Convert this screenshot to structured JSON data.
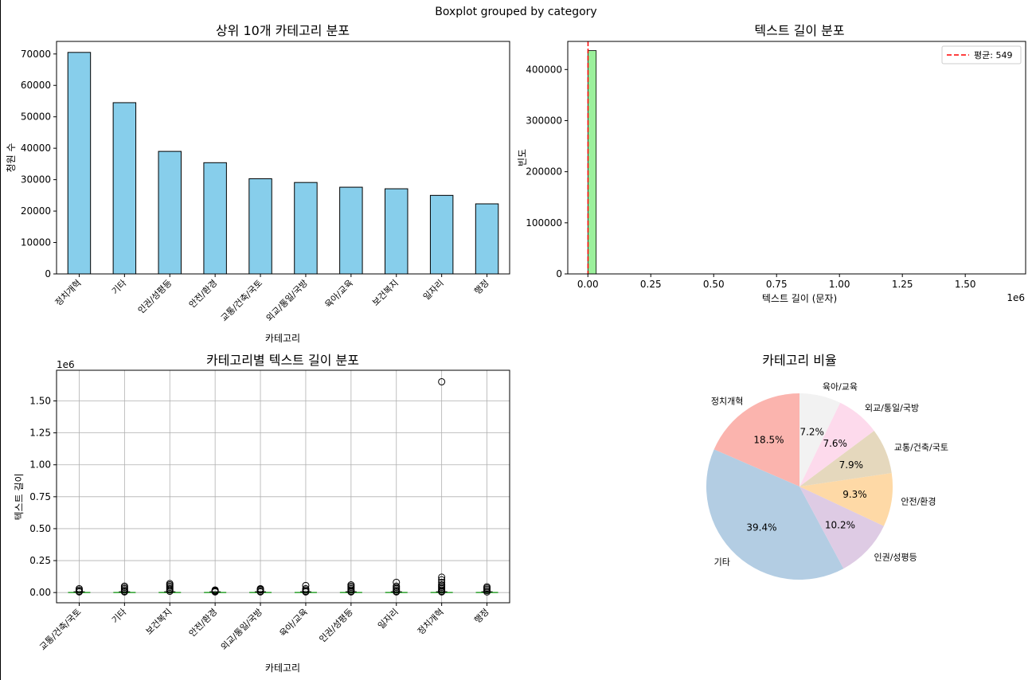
{
  "suptitle": "Boxplot grouped by category",
  "chart_data": [
    {
      "type": "bar",
      "title": "상위 10개 카테고리 분포",
      "xlabel": "카테고리",
      "ylabel": "청원 수",
      "categories": [
        "정치개혁",
        "기타",
        "인권/성평등",
        "안전/환경",
        "교통/건축/국토",
        "외교/통일/국방",
        "육아/교육",
        "보건복지",
        "일자리",
        "행정"
      ],
      "values": [
        70500,
        54500,
        39000,
        35400,
        30300,
        29100,
        27600,
        27100,
        25000,
        22300
      ],
      "ylim": [
        0,
        74000
      ],
      "yticks": [
        "0",
        "10000",
        "20000",
        "30000",
        "40000",
        "50000",
        "60000",
        "70000"
      ],
      "bar_color": "#87ceeb",
      "edge_color": "#000000"
    },
    {
      "type": "bar",
      "subtype": "histogram",
      "title": "텍스트 길이 분포",
      "xlabel": "텍스트 길이 (문자)",
      "ylabel": "빈도",
      "x_multiplier": "1e6",
      "xlim": [
        -0.08,
        1.74
      ],
      "ylim": [
        0,
        455000
      ],
      "xticks": [
        "0.00",
        "0.25",
        "0.50",
        "0.75",
        "1.00",
        "1.25",
        "1.50"
      ],
      "yticks": [
        "0",
        "100000",
        "200000",
        "300000",
        "400000"
      ],
      "bins": [
        {
          "x0": 0.0,
          "x1": 0.033,
          "count": 437000
        }
      ],
      "mean_line": {
        "value": 549,
        "label": "평균: 549",
        "color": "#ff0000"
      },
      "bar_color": "#90ee90",
      "legend_position": "top-right"
    },
    {
      "type": "scatter",
      "subtype": "boxplot",
      "title": "카테고리별 텍스트 길이 분포",
      "xlabel": "카테고리",
      "ylabel": "텍스트 길이",
      "y_multiplier": "1e6",
      "categories": [
        "교통/건축/국토",
        "기타",
        "보건복지",
        "안전/환경",
        "외교/통일/국방",
        "육아/교육",
        "인권/성평등",
        "일자리",
        "정치개혁",
        "행정"
      ],
      "ylim": [
        -0.08,
        1.74
      ],
      "yticks": [
        "0.00",
        "0.25",
        "0.50",
        "0.75",
        "1.00",
        "1.25",
        "1.50"
      ],
      "grid": true,
      "outliers": [
        [
          0.03,
          0.02,
          0.01,
          0.005
        ],
        [
          0.05,
          0.04,
          0.03,
          0.02,
          0.01,
          0.005
        ],
        [
          0.07,
          0.06,
          0.05,
          0.04,
          0.03,
          0.02,
          0.01
        ],
        [
          0.02,
          0.015,
          0.01,
          0.005
        ],
        [
          0.03,
          0.025,
          0.02,
          0.01,
          0.005
        ],
        [
          0.055,
          0.03,
          0.02,
          0.01,
          0.005
        ],
        [
          0.06,
          0.05,
          0.04,
          0.03,
          0.02,
          0.01,
          0.005
        ],
        [
          0.08,
          0.05,
          0.04,
          0.03,
          0.02,
          0.01,
          0.005
        ],
        [
          1.65,
          0.12,
          0.1,
          0.08,
          0.06,
          0.05,
          0.04,
          0.03,
          0.02,
          0.01,
          0.005
        ],
        [
          0.045,
          0.035,
          0.025,
          0.015,
          0.005
        ]
      ],
      "median_color": "#2ca02c"
    },
    {
      "type": "pie",
      "title": "카테고리 비율",
      "start_angle": 90,
      "labels": [
        "정치개혁",
        "기타",
        "인권/성평등",
        "안전/환경",
        "교통/건축/국토",
        "외교/통일/국방",
        "육아/교육"
      ],
      "values": [
        18.5,
        39.4,
        10.2,
        9.3,
        7.9,
        7.6,
        7.2
      ],
      "pct_labels": [
        "18.5%",
        "39.4%",
        "10.2%",
        "9.3%",
        "7.9%",
        "7.6%",
        "7.2%"
      ],
      "colors": [
        "#fbb4ae",
        "#b3cde3",
        "#decbe4",
        "#fed9a6",
        "#e5d8bd",
        "#fddaec",
        "#f2f2f2"
      ]
    }
  ]
}
